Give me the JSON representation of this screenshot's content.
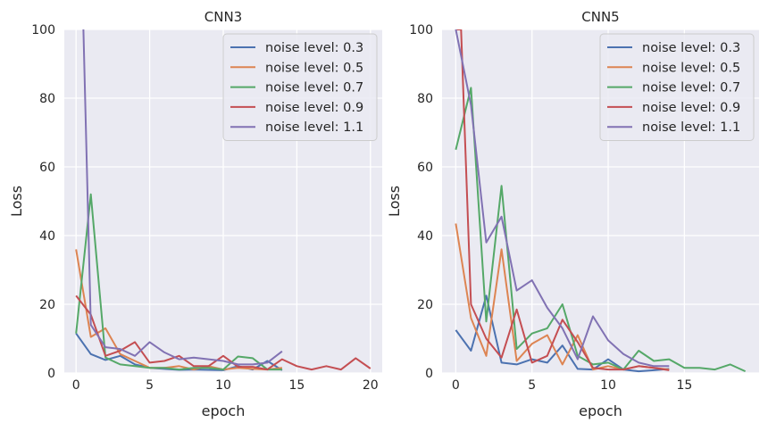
{
  "colors": {
    "background": "#eaeaf2",
    "grid": "#ffffff",
    "series": [
      "#4c72b0",
      "#dd8452",
      "#55a868",
      "#c44e52",
      "#8172b3"
    ]
  },
  "chart_data": [
    {
      "type": "line",
      "title": "CNN3",
      "xlabel": "epoch",
      "ylabel": "Loss",
      "xlim": [
        -0.8,
        20.8
      ],
      "ylim": [
        0,
        100
      ],
      "xticks": [
        0,
        5,
        10,
        15,
        20
      ],
      "yticks": [
        0,
        20,
        40,
        60,
        80,
        100
      ],
      "grid": true,
      "legend": "top-right",
      "series": [
        {
          "name": "noise level: 0.3",
          "x": [
            0,
            1,
            2,
            3,
            4,
            5,
            6,
            7,
            8,
            9,
            10,
            11,
            12,
            13,
            14
          ],
          "y": [
            11.5,
            5.5,
            3.8,
            5.0,
            2.5,
            1.5,
            1.2,
            0.9,
            1.0,
            0.9,
            0.8,
            2.0,
            1.0,
            3.5,
            0.8
          ]
        },
        {
          "name": "noise level: 0.5",
          "x": [
            0,
            1,
            2,
            3,
            4,
            5,
            6,
            7,
            8,
            9,
            10,
            11,
            12,
            13,
            14
          ],
          "y": [
            36.0,
            10.5,
            13.0,
            5.5,
            3.5,
            1.5,
            1.5,
            2.0,
            1.0,
            2.0,
            1.0,
            1.5,
            1.2,
            1.0,
            1.5
          ]
        },
        {
          "name": "noise level: 0.7",
          "x": [
            0,
            1,
            2,
            3,
            4,
            5,
            6,
            7,
            8,
            9,
            10,
            11,
            12,
            13,
            14
          ],
          "y": [
            11.5,
            52.0,
            4.5,
            2.5,
            2.0,
            1.5,
            1.5,
            1.0,
            1.5,
            1.5,
            1.0,
            4.8,
            4.3,
            1.0,
            1.0
          ]
        },
        {
          "name": "noise level: 0.9",
          "x": [
            0,
            1,
            2,
            3,
            4,
            5,
            6,
            7,
            8,
            9,
            10,
            11,
            12,
            13,
            14,
            15,
            16,
            17,
            18,
            19,
            20
          ],
          "y": [
            22.5,
            17.0,
            5.0,
            6.5,
            9.0,
            3.0,
            3.5,
            5.0,
            2.0,
            2.0,
            5.0,
            1.8,
            1.8,
            1.0,
            4.0,
            2.0,
            1.0,
            2.0,
            1.0,
            4.3,
            1.3
          ]
        },
        {
          "name": "noise level: 1.1",
          "x": [
            0.5,
            1,
            2,
            3,
            4,
            5,
            6,
            7,
            8,
            9,
            10,
            11,
            12,
            13,
            14
          ],
          "y": [
            100,
            14.0,
            7.5,
            7.0,
            5.0,
            9.0,
            6.0,
            4.0,
            4.5,
            4.0,
            3.5,
            2.5,
            2.5,
            3.0,
            6.3
          ]
        }
      ]
    },
    {
      "type": "line",
      "title": "CNN5",
      "xlabel": "epoch",
      "ylabel": "Loss",
      "xlim": [
        -0.9,
        19.9
      ],
      "ylim": [
        0,
        100
      ],
      "xticks": [
        0,
        5,
        10,
        15
      ],
      "yticks": [
        0,
        20,
        40,
        60,
        80,
        100
      ],
      "grid": true,
      "legend": "top-right",
      "series": [
        {
          "name": "noise level: 0.3",
          "x": [
            0,
            1,
            2,
            3,
            4,
            5,
            6,
            7,
            8,
            9,
            10,
            11,
            12,
            13,
            14
          ],
          "y": [
            12.5,
            6.5,
            22.5,
            3.0,
            2.5,
            4.0,
            3.0,
            8.0,
            1.2,
            1.0,
            4.0,
            1.0,
            0.5,
            0.8,
            1.2
          ]
        },
        {
          "name": "noise level: 0.5",
          "x": [
            0,
            1,
            2,
            3,
            4,
            5,
            6,
            7,
            8,
            9,
            10,
            11,
            12,
            13,
            14
          ],
          "y": [
            43.5,
            16.0,
            5.0,
            36.0,
            3.5,
            8.5,
            11.0,
            2.5,
            11.0,
            1.0,
            2.0,
            1.0,
            2.0,
            1.5,
            1.0
          ]
        },
        {
          "name": "noise level: 0.7",
          "x": [
            0,
            1,
            2,
            3,
            4,
            5,
            6,
            7,
            8,
            9,
            10,
            11,
            12,
            13,
            14,
            15,
            16,
            17,
            18,
            19
          ],
          "y": [
            65.0,
            83.0,
            15.0,
            54.5,
            7.0,
            11.5,
            13.0,
            20.0,
            5.0,
            2.5,
            3.0,
            1.0,
            6.5,
            3.5,
            4.0,
            1.5,
            1.5,
            1.0,
            2.5,
            0.5
          ]
        },
        {
          "name": "noise level: 0.9",
          "x": [
            0,
            0.35,
            1,
            2,
            3,
            4,
            5,
            6,
            7,
            8,
            9,
            10,
            11,
            12,
            13,
            14
          ],
          "y": [
            100,
            100,
            20.0,
            10.0,
            4.5,
            18.5,
            3.0,
            5.0,
            15.5,
            9.0,
            1.5,
            1.0,
            1.0,
            2.0,
            1.5,
            0.8
          ]
        },
        {
          "name": "noise level: 1.1",
          "x": [
            0,
            1,
            2,
            3,
            4,
            5,
            6,
            7,
            8,
            9,
            10,
            11,
            12,
            13,
            14
          ],
          "y": [
            100,
            78.0,
            38.0,
            45.5,
            24.0,
            27.0,
            19.0,
            13.0,
            4.0,
            16.5,
            9.5,
            5.5,
            3.0,
            2.0,
            2.0
          ]
        }
      ]
    }
  ]
}
